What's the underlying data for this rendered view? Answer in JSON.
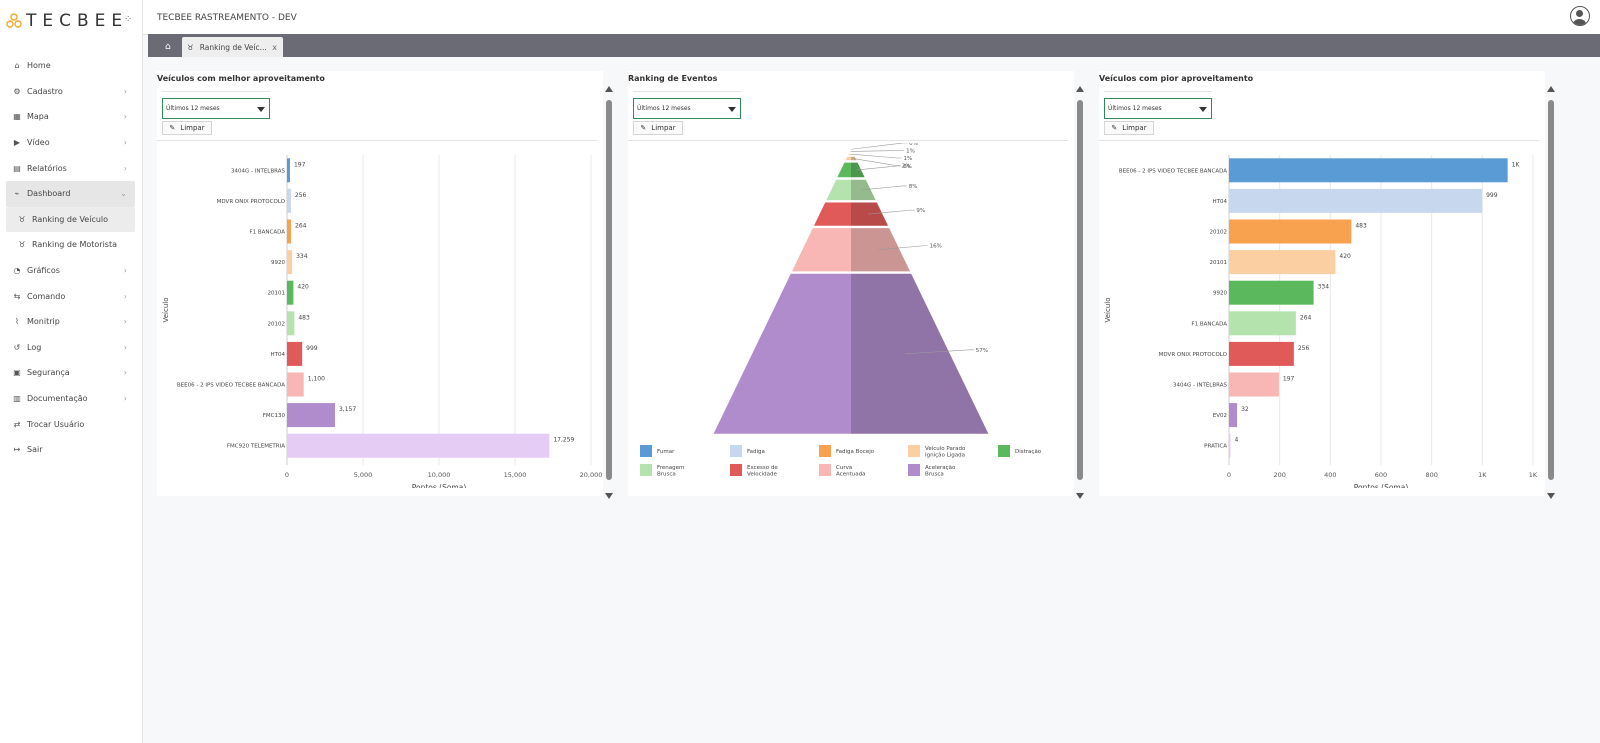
{
  "app": {
    "logo_text": "TECBEE",
    "title": "TECBEE RASTREAMENTO - DEV"
  },
  "sidebar": {
    "items": [
      {
        "label": "Home",
        "icon": "home-icon",
        "glyph": "⌂",
        "chev": ""
      },
      {
        "label": "Cadastro",
        "icon": "gear-icon",
        "glyph": "⚙",
        "chev": "›"
      },
      {
        "label": "Mapa",
        "icon": "map-icon",
        "glyph": "▦",
        "chev": "›"
      },
      {
        "label": "Vídeo",
        "icon": "video-icon",
        "glyph": "▶",
        "chev": "›"
      },
      {
        "label": "Relatórios",
        "icon": "report-icon",
        "glyph": "▤",
        "chev": "›"
      },
      {
        "label": "Dashboard",
        "icon": "dashboard-icon",
        "glyph": "⌁",
        "chev": "⌄",
        "active": true
      },
      {
        "label": "Ranking de Veículo",
        "icon": "medal-icon",
        "glyph": "♉",
        "chev": "",
        "sub": true,
        "active": true
      },
      {
        "label": "Ranking de Motorista",
        "icon": "medal-icon",
        "glyph": "♉",
        "chev": "",
        "sub": true
      },
      {
        "label": "Gráficos",
        "icon": "pie-chart-icon",
        "glyph": "◔",
        "chev": "›"
      },
      {
        "label": "Comando",
        "icon": "command-icon",
        "glyph": "⇆",
        "chev": "›"
      },
      {
        "label": "Monitrip",
        "icon": "line-chart-icon",
        "glyph": "⌇",
        "chev": "›"
      },
      {
        "label": "Log",
        "icon": "history-icon",
        "glyph": "↺",
        "chev": "›"
      },
      {
        "label": "Segurança",
        "icon": "lock-icon",
        "glyph": "▣",
        "chev": "›"
      },
      {
        "label": "Documentação",
        "icon": "book-icon",
        "glyph": "▥",
        "chev": "›"
      },
      {
        "label": "Trocar Usuário",
        "icon": "swap-icon",
        "glyph": "⇄",
        "chev": ""
      },
      {
        "label": "Sair",
        "icon": "logout-icon",
        "glyph": "↦",
        "chev": ""
      }
    ]
  },
  "tabs": {
    "active_label": "Ranking de Veíc...",
    "close": "x"
  },
  "panels": {
    "best": {
      "title": "Veículos com melhor aproveitamento",
      "filter": "Últimos 12 meses",
      "clear": "Limpar"
    },
    "events": {
      "title": "Ranking de Eventos",
      "filter": "Últimos 12 meses",
      "clear": "Limpar"
    },
    "worst": {
      "title": "Veículos com pior aproveitamento",
      "filter": "Últimos 12 meses",
      "clear": "Limpar"
    }
  },
  "colors": {
    "accent_border": "#2e8b57",
    "tabbar": "#6b6b76",
    "palette": [
      "#5b9bd5",
      "#c6d7ee",
      "#f8a14e",
      "#fbcfa2",
      "#5cb85c",
      "#b4e3ad",
      "#e05a5a",
      "#f8b6b4",
      "#b08ccc",
      "#e4ccf5"
    ]
  },
  "chart_data": [
    {
      "type": "bar",
      "orientation": "horizontal",
      "categories": [
        "3404G - INTELBRAS",
        "MDVR ONIX PROTOCOLO",
        "F1 BANCADA",
        "9920",
        "20101",
        "20102",
        "HT04",
        "BEE06 - 2 IPS VIDEO TECBEE BANCADA",
        "FMC130",
        "FMC920 TELEMETRIA"
      ],
      "values": [
        197,
        256,
        264,
        334,
        420,
        483,
        999,
        1100,
        3157,
        17259
      ],
      "value_labels": [
        "197",
        "256",
        "264",
        "334",
        "420",
        "483",
        "999",
        "1,100",
        "3,157",
        "17,259"
      ],
      "colors": [
        "#5b9bd5",
        "#c6d7ee",
        "#f8a14e",
        "#fbcfa2",
        "#5cb85c",
        "#b4e3ad",
        "#e05a5a",
        "#f8b6b4",
        "#b08ccc",
        "#e4ccf5"
      ],
      "xlabel": "Pontos (Soma)",
      "ylabel": "Veículo",
      "xlim": [
        0,
        20000
      ],
      "xticks": [
        0,
        5000,
        10000,
        15000,
        20000
      ],
      "xtick_labels": [
        "0",
        "5,000",
        "10,000",
        "15,000",
        "20,000"
      ],
      "grid": true
    },
    {
      "type": "pyramid",
      "levels": [
        {
          "pct_label": "0%",
          "color": "#5b9bd5"
        },
        {
          "pct_label": "1%",
          "color": "#c6d7ee"
        },
        {
          "pct_label": "1%",
          "color": "#f8a14e"
        },
        {
          "pct_label": "2%",
          "color": "#fbcfa2"
        },
        {
          "pct_label": "6%",
          "color": "#5cb85c"
        },
        {
          "pct_label": "8%",
          "color": "#b4e3ad"
        },
        {
          "pct_label": "9%",
          "color": "#e05a5a"
        },
        {
          "pct_label": "16%",
          "color": "#f8b6b4"
        },
        {
          "pct_label": "57%",
          "color": "#b08ccc"
        }
      ],
      "legend": [
        {
          "label": "Fumar",
          "color": "#5b9bd5"
        },
        {
          "label": "Fadiga",
          "color": "#c6d7ee"
        },
        {
          "label": "Fadiga Bocejo",
          "color": "#f8a14e"
        },
        {
          "label": "Veículo Parado Ignição Ligada",
          "color": "#fbcfa2"
        },
        {
          "label": "Distração",
          "color": "#5cb85c"
        },
        {
          "label": "Frenagem Brusca",
          "color": "#b4e3ad"
        },
        {
          "label": "Excesso de Velocidade",
          "color": "#e05a5a"
        },
        {
          "label": "Curva Acentuada",
          "color": "#f8b6b4"
        },
        {
          "label": "Aceleração Brusca",
          "color": "#b08ccc"
        }
      ]
    },
    {
      "type": "bar",
      "orientation": "horizontal",
      "categories": [
        "BEE06 - 2 IPS VIDEO TECBEE BANCADA",
        "HT04",
        "20102",
        "20101",
        "9920",
        "F1 BANCADA",
        "MDVR ONIX PROTOCOLO",
        "3404G - INTELBRAS",
        "EV02",
        "PRATICA"
      ],
      "values": [
        1100,
        999,
        483,
        420,
        334,
        264,
        256,
        197,
        32,
        4
      ],
      "value_labels": [
        "1K",
        "999",
        "483",
        "420",
        "334",
        "264",
        "256",
        "197",
        "32",
        "4"
      ],
      "colors": [
        "#5b9bd5",
        "#c6d7ee",
        "#f8a14e",
        "#fbcfa2",
        "#5cb85c",
        "#b4e3ad",
        "#e05a5a",
        "#f8b6b4",
        "#b08ccc",
        "#e4ccf5"
      ],
      "xlabel": "Pontos (Soma)",
      "ylabel": "Veículo",
      "xlim": [
        0,
        1200
      ],
      "xticks": [
        0,
        200,
        400,
        600,
        800,
        1000,
        1200
      ],
      "xtick_labels": [
        "0",
        "200",
        "400",
        "600",
        "800",
        "1K",
        "1K"
      ],
      "grid": true
    }
  ]
}
